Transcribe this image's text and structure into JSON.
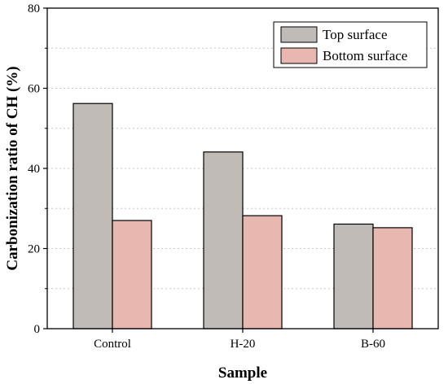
{
  "chart_data": {
    "type": "bar",
    "xlabel": "Sample",
    "ylabel": "Carbonization ratio of CH (%)",
    "categories": [
      "Control",
      "H-20",
      "B-60"
    ],
    "ylim": [
      0,
      80
    ],
    "yticks": [
      0,
      20,
      40,
      60,
      80
    ],
    "grid": true,
    "legend_position": "top-right",
    "series": [
      {
        "name": "Top surface",
        "color": "#c1bbb8",
        "values": [
          56.2,
          44.1,
          26.1
        ]
      },
      {
        "name": "Bottom surface",
        "color": "#e7b7b0",
        "values": [
          27.0,
          28.2,
          25.2
        ]
      }
    ]
  }
}
